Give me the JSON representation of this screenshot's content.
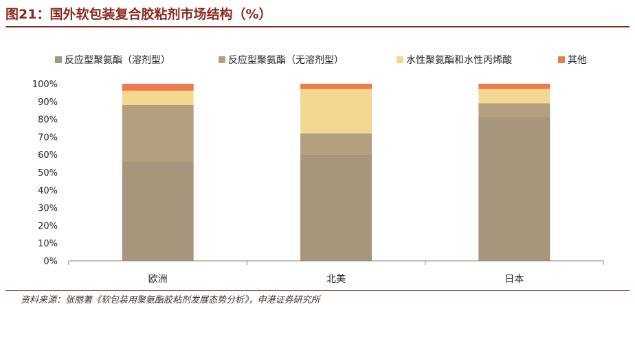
{
  "header": {
    "title": "图21：国外软包装复合胶粘剂市场结构（%）"
  },
  "source": "资料来源：张丽著《软包装用聚氨酯胶粘剂发展态势分析》，申港证券研究所",
  "colors": {
    "accent": "#8a2a1e",
    "series": [
      "#a7957c",
      "#b4a07f",
      "#f2d98f",
      "#ee7a50"
    ]
  },
  "chart_data": {
    "type": "bar",
    "stacked": true,
    "categories": [
      "欧洲",
      "北美",
      "日本"
    ],
    "series": [
      {
        "name": "反应型聚氨酯（溶剂型）",
        "values": [
          56,
          60,
          81
        ]
      },
      {
        "name": "反应型聚氨酯（无溶剂型）",
        "values": [
          32,
          12,
          8
        ]
      },
      {
        "name": "水性聚氨酯和水性丙烯酸",
        "values": [
          8,
          25,
          8
        ]
      },
      {
        "name": "其他",
        "values": [
          4,
          3,
          3
        ]
      }
    ],
    "ylim": [
      0,
      100
    ],
    "yticks": [
      "0%",
      "10%",
      "20%",
      "30%",
      "40%",
      "50%",
      "60%",
      "70%",
      "80%",
      "90%",
      "100%"
    ],
    "grid": false,
    "legend": "top"
  }
}
